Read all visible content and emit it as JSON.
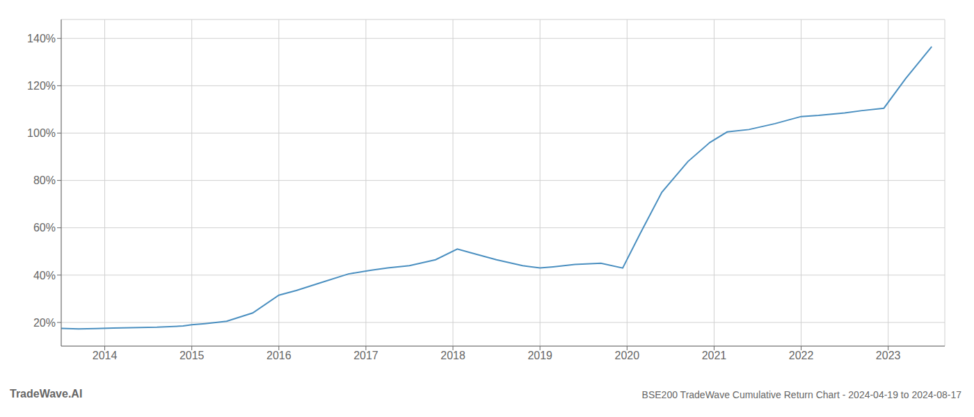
{
  "chart_data": {
    "type": "line",
    "title": "BSE200 TradeWave Cumulative Return Chart - 2024-04-19 to 2024-08-17",
    "annotations": [
      "TradeWave.AI"
    ],
    "x": [
      2013.5,
      2013.7,
      2013.9,
      2014.1,
      2014.3,
      2014.6,
      2014.9,
      2015.0,
      2015.15,
      2015.4,
      2015.7,
      2016.0,
      2016.2,
      2016.5,
      2016.8,
      2017.05,
      2017.25,
      2017.5,
      2017.8,
      2018.05,
      2018.2,
      2018.5,
      2018.8,
      2019.0,
      2019.15,
      2019.4,
      2019.7,
      2019.95,
      2020.15,
      2020.4,
      2020.7,
      2020.95,
      2021.15,
      2021.4,
      2021.7,
      2022.0,
      2022.2,
      2022.5,
      2022.7,
      2022.95,
      2023.2,
      2023.5
    ],
    "values": [
      17.5,
      17.3,
      17.4,
      17.6,
      17.8,
      18.0,
      18.5,
      19.0,
      19.5,
      20.5,
      24.0,
      31.5,
      33.5,
      37.0,
      40.5,
      42.0,
      43.0,
      44.0,
      46.5,
      51.0,
      49.5,
      46.5,
      44.0,
      43.0,
      43.5,
      44.5,
      45.0,
      43.0,
      57.5,
      75.0,
      88.0,
      96.0,
      100.5,
      101.5,
      104.0,
      107.0,
      107.5,
      108.5,
      109.5,
      110.5,
      123.0,
      136.5
    ],
    "color": "#4a8fc0",
    "xlim": [
      2013.5,
      2023.65
    ],
    "ylim": [
      10,
      148
    ],
    "xticks": [
      2014,
      2015,
      2016,
      2017,
      2018,
      2019,
      2020,
      2021,
      2022,
      2023
    ],
    "yticks": [
      {
        "value": 20,
        "label": "20%"
      },
      {
        "value": 40,
        "label": "40%"
      },
      {
        "value": 60,
        "label": "60%"
      },
      {
        "value": 80,
        "label": "80%"
      },
      {
        "value": 100,
        "label": "100%"
      },
      {
        "value": 120,
        "label": "120%"
      },
      {
        "value": 140,
        "label": "140%"
      }
    ],
    "grid": true
  }
}
